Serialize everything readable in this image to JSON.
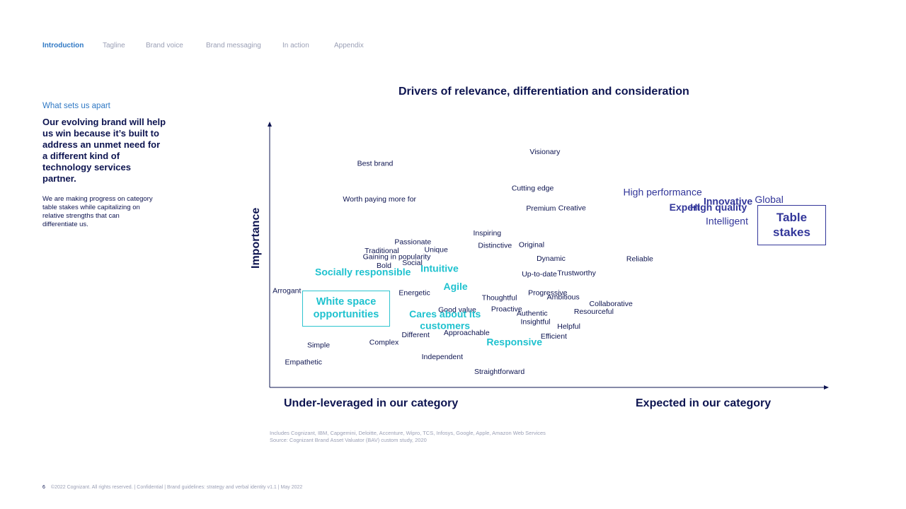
{
  "nav": {
    "tabs": [
      {
        "label": "Introduction",
        "active": true
      },
      {
        "label": "Tagline",
        "active": false
      },
      {
        "label": "Brand voice",
        "active": false
      },
      {
        "label": "Brand messaging",
        "active": false
      },
      {
        "label": "In action",
        "active": false
      },
      {
        "label": "Appendix",
        "active": false
      }
    ]
  },
  "sidebar": {
    "kicker": "What sets us apart",
    "headline": "Our evolving brand will help us win because it’s built to address an unmet need for a different kind of technology services partner.",
    "body": "We are making progress on category table stakes while capitalizing on relative strengths that can differentiate us."
  },
  "chart_data": {
    "type": "scatter",
    "title": "Drivers of relevance, differentiation and consideration",
    "ylabel": "Importance",
    "xlabel_left": "Under-leveraged in our category",
    "xlabel_right": "Expected in our category",
    "xlim": [
      0,
      100
    ],
    "ylim": [
      0,
      100
    ],
    "series_styles": {
      "default": {
        "color": "#0d1450",
        "size": 10.5,
        "weight": "normal"
      },
      "strength": {
        "color": "#1fc2cf",
        "size": 14,
        "weight": "bold"
      },
      "table-stake": {
        "color": "#33379a",
        "size": 14,
        "weight": "normal"
      },
      "table-stake-bold": {
        "color": "#33379a",
        "size": 14,
        "weight": "bold"
      }
    },
    "points": [
      {
        "label": "Visionary",
        "x": 49.6,
        "y": 90.0,
        "style": "default"
      },
      {
        "label": "Best brand",
        "x": 19.0,
        "y": 85.5,
        "style": "default"
      },
      {
        "label": "Cutting edge",
        "x": 47.4,
        "y": 76.0,
        "style": "default"
      },
      {
        "label": "Worth paying more for",
        "x": 19.8,
        "y": 71.8,
        "style": "default"
      },
      {
        "label": "Premium",
        "x": 48.9,
        "y": 68.3,
        "style": "default"
      },
      {
        "label": "Creative",
        "x": 54.5,
        "y": 68.5,
        "style": "default"
      },
      {
        "label": "High performance",
        "x": 70.8,
        "y": 74.4,
        "style": "table-stake"
      },
      {
        "label": "Innovative",
        "x": 82.6,
        "y": 70.8,
        "style": "table-stake-bold"
      },
      {
        "label": "Global",
        "x": 90.0,
        "y": 71.5,
        "style": "table-stake"
      },
      {
        "label": "Expert",
        "x": 74.8,
        "y": 68.5,
        "style": "table-stake-bold"
      },
      {
        "label": "High quality",
        "x": 80.9,
        "y": 68.5,
        "style": "table-stake-bold"
      },
      {
        "label": "Intelligent",
        "x": 82.4,
        "y": 63.3,
        "style": "table-stake"
      },
      {
        "label": "Inspiring",
        "x": 39.2,
        "y": 58.8,
        "style": "default"
      },
      {
        "label": "Passionate",
        "x": 25.8,
        "y": 55.5,
        "style": "default"
      },
      {
        "label": "Distinctive",
        "x": 40.6,
        "y": 54.1,
        "style": "default"
      },
      {
        "label": "Original",
        "x": 47.2,
        "y": 54.4,
        "style": "default"
      },
      {
        "label": "Unique",
        "x": 30.0,
        "y": 52.5,
        "style": "default"
      },
      {
        "label": "Traditional",
        "x": 20.2,
        "y": 52.1,
        "style": "default"
      },
      {
        "label": "Gaining in popularity",
        "x": 22.9,
        "y": 49.8,
        "style": "default"
      },
      {
        "label": "Dynamic",
        "x": 50.7,
        "y": 49.2,
        "style": "default"
      },
      {
        "label": "Reliable",
        "x": 66.7,
        "y": 49.0,
        "style": "default"
      },
      {
        "label": "Social",
        "x": 25.7,
        "y": 47.5,
        "style": "default"
      },
      {
        "label": "Bold",
        "x": 20.6,
        "y": 46.4,
        "style": "default"
      },
      {
        "label": "Socially responsible",
        "x": 16.8,
        "y": 43.8,
        "style": "strength"
      },
      {
        "label": "Intuitive",
        "x": 30.6,
        "y": 45.2,
        "style": "strength"
      },
      {
        "label": "Up-to-date",
        "x": 48.6,
        "y": 43.2,
        "style": "default"
      },
      {
        "label": "Trustworthy",
        "x": 55.3,
        "y": 43.6,
        "style": "default"
      },
      {
        "label": "Agile",
        "x": 33.5,
        "y": 38.3,
        "style": "strength"
      },
      {
        "label": "Arrogant",
        "x": 3.1,
        "y": 36.8,
        "style": "default"
      },
      {
        "label": "Energetic",
        "x": 26.1,
        "y": 36.0,
        "style": "default"
      },
      {
        "label": "Progressive",
        "x": 50.1,
        "y": 36.0,
        "style": "default"
      },
      {
        "label": "Thoughtful",
        "x": 41.4,
        "y": 34.2,
        "style": "default"
      },
      {
        "label": "Ambitious",
        "x": 52.9,
        "y": 34.4,
        "style": "default"
      },
      {
        "label": "Collaborative",
        "x": 61.5,
        "y": 31.9,
        "style": "default"
      },
      {
        "label": "Proactive",
        "x": 42.7,
        "y": 29.8,
        "style": "default"
      },
      {
        "label": "Good value",
        "x": 33.8,
        "y": 29.5,
        "style": "default"
      },
      {
        "label": "Resourceful",
        "x": 58.4,
        "y": 28.9,
        "style": "default"
      },
      {
        "label": "Authentic",
        "x": 47.3,
        "y": 28.2,
        "style": "default"
      },
      {
        "label": "Cares about its customers",
        "x": 31.6,
        "y": 25.7,
        "style": "strength"
      },
      {
        "label": "Insightful",
        "x": 47.9,
        "y": 25.0,
        "style": "default"
      },
      {
        "label": "Helpful",
        "x": 53.9,
        "y": 23.2,
        "style": "default"
      },
      {
        "label": "Approachable",
        "x": 35.5,
        "y": 20.7,
        "style": "default"
      },
      {
        "label": "Different",
        "x": 26.3,
        "y": 19.9,
        "style": "default"
      },
      {
        "label": "Efficient",
        "x": 51.2,
        "y": 19.4,
        "style": "default"
      },
      {
        "label": "Responsive",
        "x": 44.1,
        "y": 17.1,
        "style": "strength"
      },
      {
        "label": "Complex",
        "x": 20.6,
        "y": 17.1,
        "style": "default"
      },
      {
        "label": "Simple",
        "x": 8.8,
        "y": 16.0,
        "style": "default"
      },
      {
        "label": "Independent",
        "x": 31.1,
        "y": 11.5,
        "style": "default"
      },
      {
        "label": "Empathetic",
        "x": 6.1,
        "y": 9.6,
        "style": "default"
      },
      {
        "label": "Straightforward",
        "x": 41.4,
        "y": 5.9,
        "style": "default"
      }
    ],
    "boxes": [
      {
        "label": "White space opportunities",
        "color": "#1fc2cf"
      },
      {
        "label": "Table stakes",
        "color": "#33379a"
      }
    ]
  },
  "notes": {
    "line1": "Includes Cognizant, IBM, Capgemini, Deloitte, Accenture, Wipro, TCS, Infosys, Google, Apple, Amazon Web Services",
    "line2": "Source: Cognizant Brand Asset Valuator (BAV) custom study, 2020"
  },
  "footer": {
    "page": "6",
    "text": "©2022 Cognizant.  All rights reserved.   |   Confidential   |   Brand guidelines: strategy and verbal identity v1.1   |   May 2022"
  }
}
